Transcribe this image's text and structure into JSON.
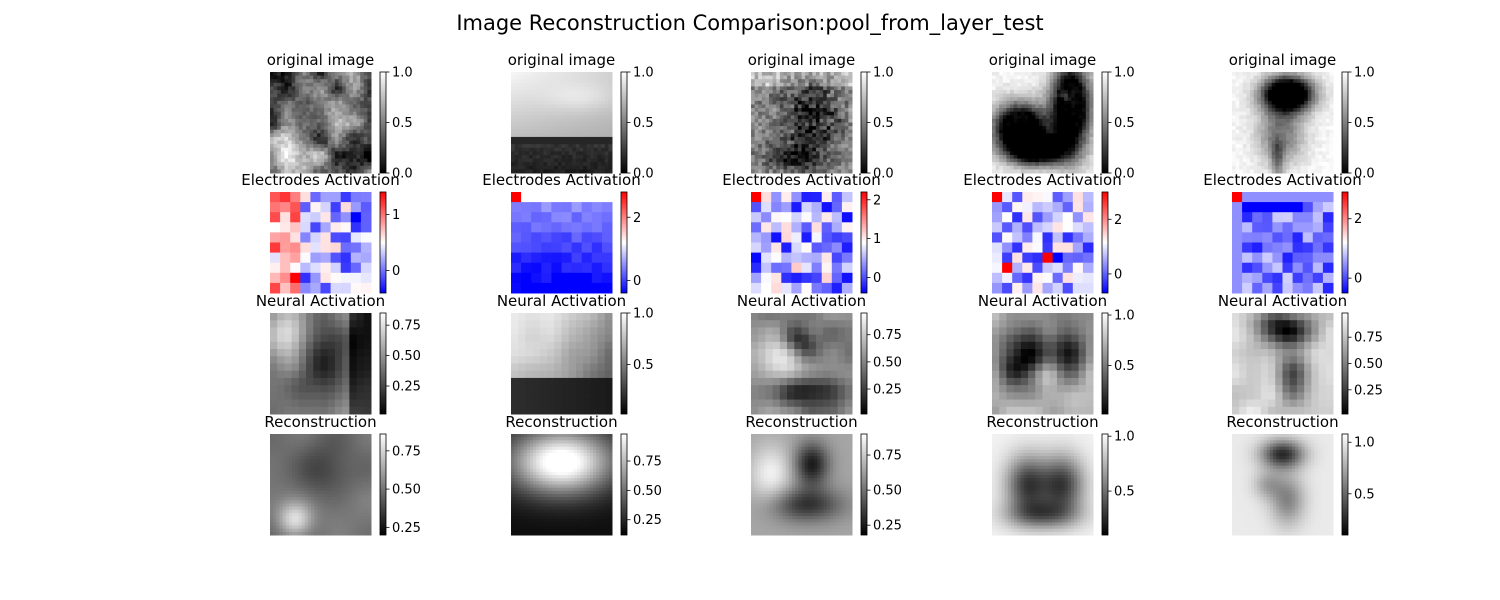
{
  "figure": {
    "title": "Image Reconstruction Comparison:pool_from_layer_test"
  },
  "chart_data": {
    "type": "heatmap",
    "layout": {
      "rows": 4,
      "columns": 5
    },
    "row_titles": [
      "original image",
      "Electrodes Activation",
      "Neural Activation",
      "Reconstruction"
    ],
    "colormaps": {
      "gray": [
        "#000000",
        "#ffffff"
      ],
      "bwr": [
        "#0000ff",
        "#ffffff",
        "#ff0000"
      ]
    },
    "panels": [
      [
        {
          "title": "original image",
          "cmap": "gray",
          "vmin": 0,
          "vmax": 1,
          "ticks": [
            "0.0",
            "0.5",
            "1.0"
          ],
          "pattern": "texture"
        },
        {
          "title": "original image",
          "cmap": "gray",
          "vmin": 0,
          "vmax": 1,
          "ticks": [
            "0.0",
            "0.5",
            "1.0"
          ],
          "pattern": "sky"
        },
        {
          "title": "original image",
          "cmap": "gray",
          "vmin": 0,
          "vmax": 1,
          "ticks": [
            "0.0",
            "0.5",
            "1.0"
          ],
          "pattern": "lion"
        },
        {
          "title": "original image",
          "cmap": "gray",
          "vmin": 0,
          "vmax": 1,
          "ticks": [
            "0.0",
            "0.5",
            "1.0"
          ],
          "pattern": "animals"
        },
        {
          "title": "original image",
          "cmap": "gray",
          "vmin": 0,
          "vmax": 1,
          "ticks": [
            "0.0",
            "0.5",
            "1.0"
          ],
          "pattern": "flower"
        }
      ],
      [
        {
          "title": "Electrodes Activation",
          "cmap": "bwr",
          "vmin": -0.4,
          "vmax": 1.4,
          "ticks": [
            "0",
            "1"
          ],
          "tick_values": [
            0,
            1
          ],
          "pattern": "el1"
        },
        {
          "title": "Electrodes Activation",
          "cmap": "bwr",
          "vmin": -0.4,
          "vmax": 2.8,
          "ticks": [
            "0",
            "2"
          ],
          "tick_values": [
            0,
            2
          ],
          "pattern": "el2"
        },
        {
          "title": "Electrodes Activation",
          "cmap": "bwr",
          "vmin": -0.4,
          "vmax": 2.2,
          "ticks": [
            "0",
            "1",
            "2"
          ],
          "tick_values": [
            0,
            1,
            2
          ],
          "pattern": "el3"
        },
        {
          "title": "Electrodes Activation",
          "cmap": "bwr",
          "vmin": -0.7,
          "vmax": 3.0,
          "ticks": [
            "0",
            "2"
          ],
          "tick_values": [
            0,
            2
          ],
          "pattern": "el4"
        },
        {
          "title": "Electrodes Activation",
          "cmap": "bwr",
          "vmin": -0.5,
          "vmax": 2.9,
          "ticks": [
            "0",
            "2"
          ],
          "tick_values": [
            0,
            2
          ],
          "pattern": "el5"
        }
      ],
      [
        {
          "title": "Neural Activation",
          "cmap": "gray",
          "vmin": 0.02,
          "vmax": 0.85,
          "ticks": [
            "0.25",
            "0.50",
            "0.75"
          ],
          "tick_values": [
            0.25,
            0.5,
            0.75
          ],
          "pattern": "na1"
        },
        {
          "title": "Neural Activation",
          "cmap": "gray",
          "vmin": 0.02,
          "vmax": 1.0,
          "ticks": [
            "0.5",
            "1.0"
          ],
          "tick_values": [
            0.5,
            1.0
          ],
          "pattern": "na2"
        },
        {
          "title": "Neural Activation",
          "cmap": "gray",
          "vmin": 0.02,
          "vmax": 0.95,
          "ticks": [
            "0.25",
            "0.50",
            "0.75"
          ],
          "tick_values": [
            0.25,
            0.5,
            0.75
          ],
          "pattern": "na3"
        },
        {
          "title": "Neural Activation",
          "cmap": "gray",
          "vmin": 0.02,
          "vmax": 1.02,
          "ticks": [
            "0.5",
            "1.0"
          ],
          "tick_values": [
            0.5,
            1.0
          ],
          "pattern": "na4"
        },
        {
          "title": "Neural Activation",
          "cmap": "gray",
          "vmin": 0.02,
          "vmax": 0.98,
          "ticks": [
            "0.25",
            "0.50",
            "0.75"
          ],
          "tick_values": [
            0.25,
            0.5,
            0.75
          ],
          "pattern": "na5"
        }
      ],
      [
        {
          "title": "Reconstruction",
          "cmap": "gray",
          "vmin": 0.2,
          "vmax": 0.86,
          "ticks": [
            "0.25",
            "0.50",
            "0.75"
          ],
          "tick_values": [
            0.25,
            0.5,
            0.75
          ],
          "pattern": "rc1"
        },
        {
          "title": "Reconstruction",
          "cmap": "gray",
          "vmin": 0.12,
          "vmax": 0.98,
          "ticks": [
            "0.25",
            "0.50",
            "0.75"
          ],
          "tick_values": [
            0.25,
            0.5,
            0.75
          ],
          "pattern": "rc2"
        },
        {
          "title": "Reconstruction",
          "cmap": "gray",
          "vmin": 0.18,
          "vmax": 0.9,
          "ticks": [
            "0.25",
            "0.50",
            "0.75"
          ],
          "tick_values": [
            0.25,
            0.5,
            0.75
          ],
          "pattern": "rc3"
        },
        {
          "title": "Reconstruction",
          "cmap": "gray",
          "vmin": 0.1,
          "vmax": 1.02,
          "ticks": [
            "0.5",
            "1.0"
          ],
          "tick_values": [
            0.5,
            1.0
          ],
          "pattern": "rc4"
        },
        {
          "title": "Reconstruction",
          "cmap": "gray",
          "vmin": 0.1,
          "vmax": 1.08,
          "ticks": [
            "0.5",
            "1.0"
          ],
          "tick_values": [
            0.5,
            1.0
          ],
          "pattern": "rc5"
        }
      ]
    ]
  }
}
